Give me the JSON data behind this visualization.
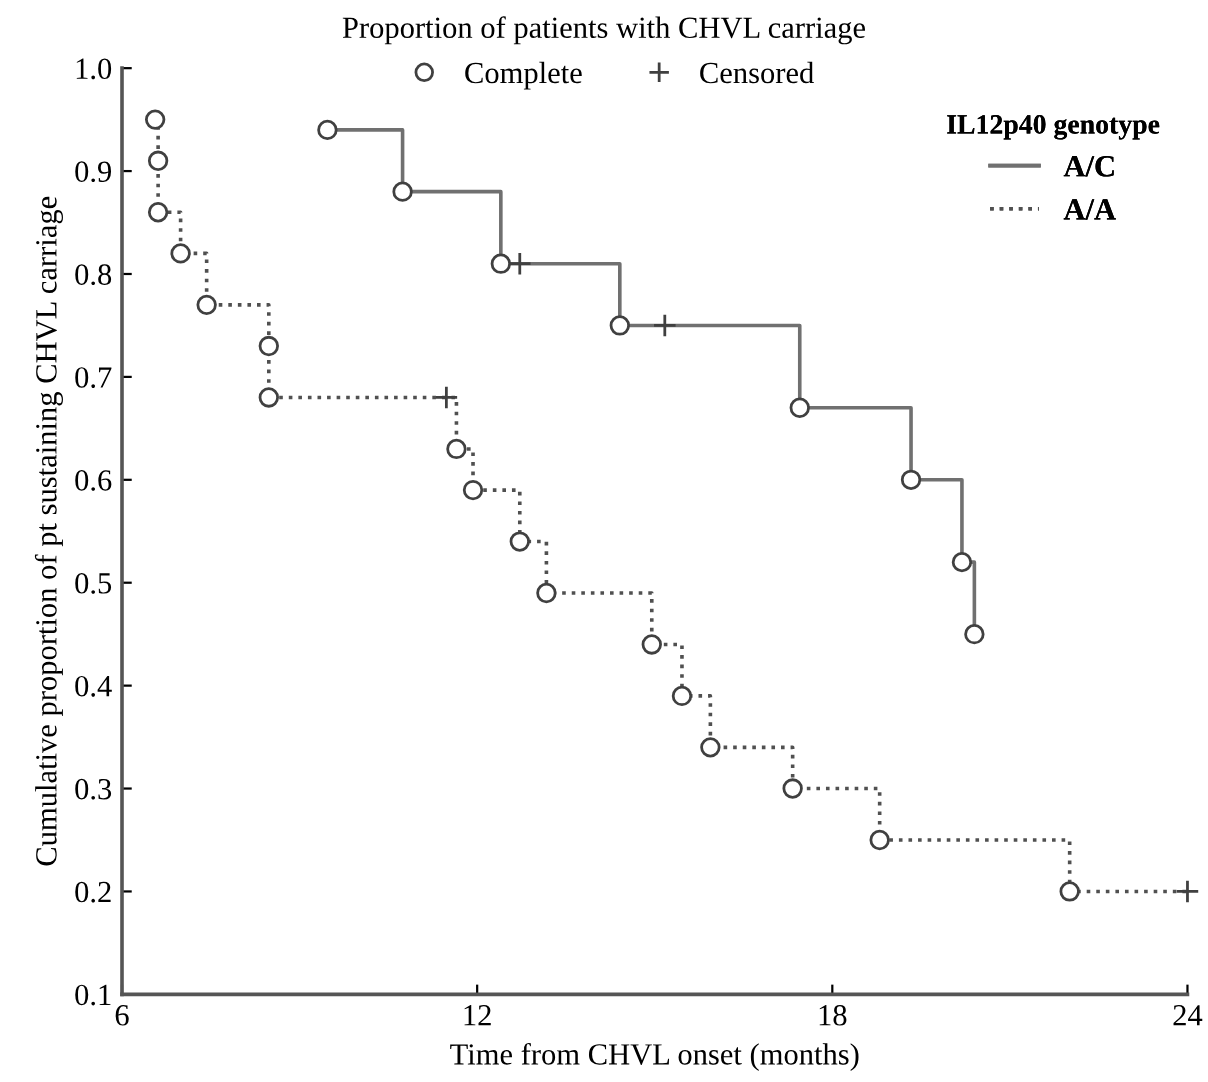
{
  "chart_data": {
    "type": "step",
    "title": "Proportion of patients with CHVL carriage",
    "xlabel": "Time from CHVL onset (months)",
    "ylabel": "Cumulative proportion of pt sustaining CHVL carriage",
    "legend_title": "IL12p40 genotype",
    "legend": "top right",
    "xlim": [
      6,
      24
    ],
    "xticks": [
      6,
      12,
      18,
      24
    ],
    "ylim": [
      0.1,
      1.0
    ],
    "yticks": [
      0.1,
      0.2,
      0.3,
      0.4,
      0.5,
      0.6,
      0.7,
      0.8,
      0.9,
      {
        "value": 1.0,
        "label": "1.0"
      }
    ],
    "series": [
      {
        "name": "A/C",
        "color": "#707070",
        "line_style": "solid",
        "x": [
          9.47,
          10.74,
          12.4,
          14.41,
          17.45,
          19.33,
          20.19,
          20.4
        ],
        "values": [
          0.94,
          0.88,
          0.81,
          0.75,
          0.67,
          0.6,
          0.52,
          0.45
        ]
      },
      {
        "name": "A/A",
        "color": "#505050",
        "line_style": "dotted",
        "x": [
          6.56,
          6.61,
          6.61,
          6.99,
          7.43,
          8.48,
          8.48,
          11.65,
          11.93,
          12.72,
          13.17,
          14.95,
          15.46,
          15.94,
          17.33,
          18.8,
          22.01,
          24.0
        ],
        "values": [
          0.95,
          0.91,
          0.86,
          0.82,
          0.77,
          0.73,
          0.68,
          0.63,
          0.59,
          0.54,
          0.49,
          0.44,
          0.39,
          0.34,
          0.3,
          0.25,
          0.2,
          0.2
        ]
      },
      {
        "name": "Complete",
        "type": "scatter",
        "marker": "circle",
        "color": "#404040",
        "x": [
          9.47,
          10.74,
          12.4,
          14.41,
          17.45,
          19.33,
          20.19,
          20.4,
          6.56,
          6.61,
          6.61,
          6.99,
          7.43,
          8.48,
          8.48,
          11.65,
          11.93,
          12.72,
          13.17,
          14.95,
          15.46,
          15.94,
          17.33,
          18.8,
          22.01
        ],
        "values": [
          0.94,
          0.88,
          0.81,
          0.75,
          0.67,
          0.6,
          0.52,
          0.45,
          0.95,
          0.91,
          0.86,
          0.82,
          0.77,
          0.73,
          0.68,
          0.63,
          0.59,
          0.54,
          0.49,
          0.44,
          0.39,
          0.34,
          0.3,
          0.25,
          0.2
        ]
      },
      {
        "name": "Censored",
        "type": "scatter",
        "marker": "cross",
        "color": "#404040",
        "x": [
          12.72,
          15.17,
          11.48,
          24.0
        ],
        "values": [
          0.81,
          0.75,
          0.68,
          0.2
        ]
      }
    ]
  }
}
